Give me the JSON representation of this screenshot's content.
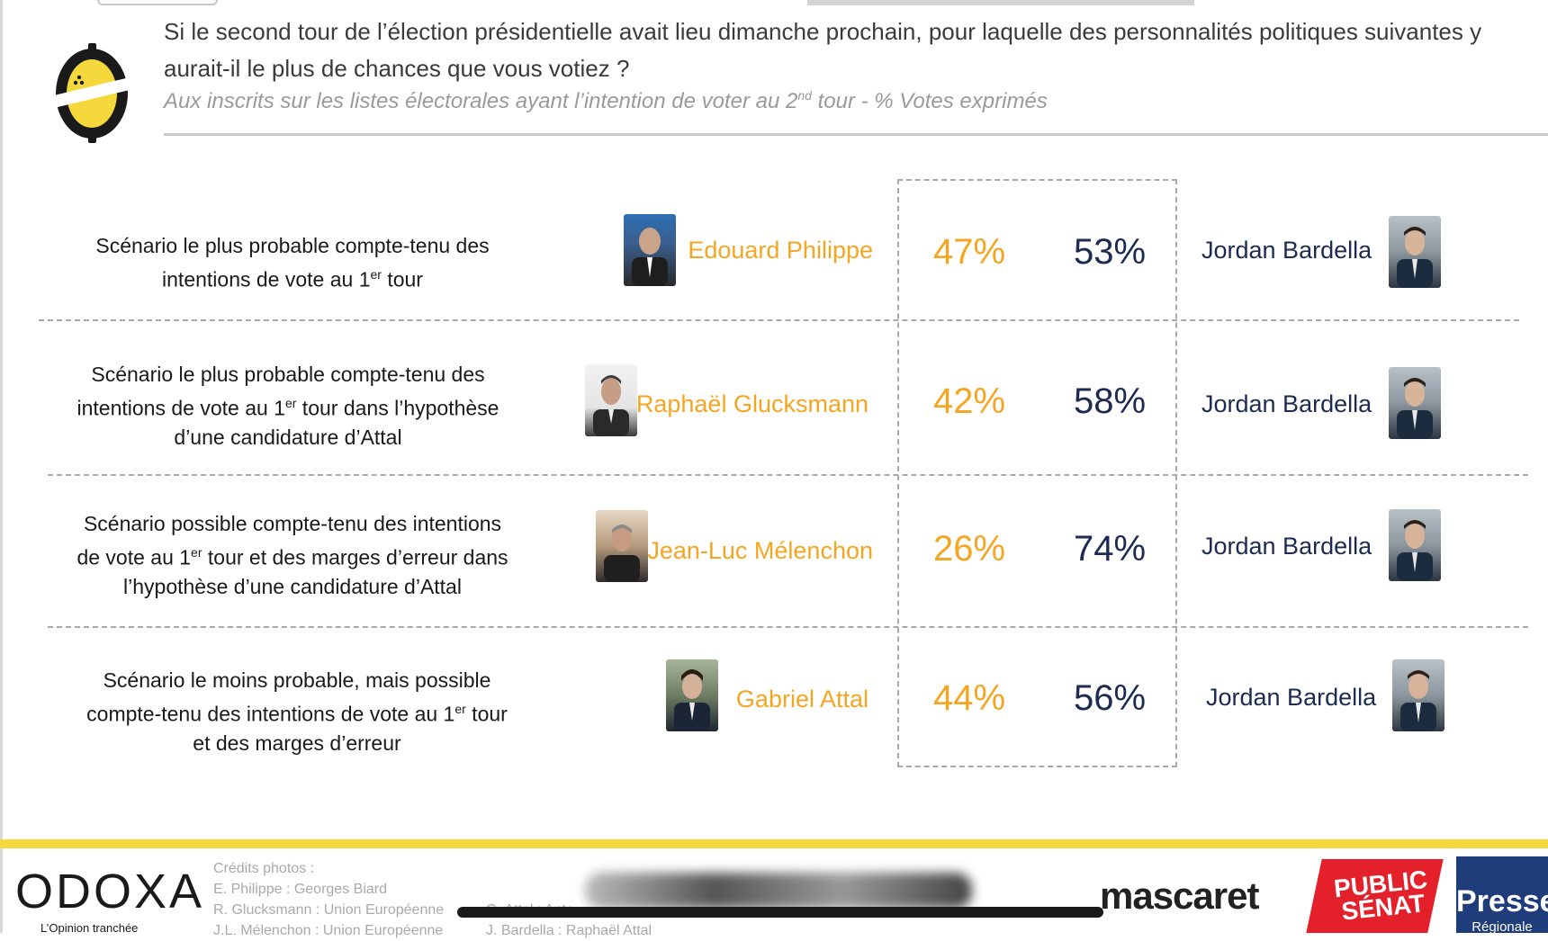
{
  "header": {
    "question": "Si le second tour de l’élection présidentielle avait lieu dimanche prochain, pour laquelle des personnalités politiques suivantes y aurait-il le plus de chances que vous votiez ?",
    "subtitle_pre": "Aux inscrits sur les listes électorales ayant l’intention de voter au 2",
    "subtitle_sup": "nd",
    "subtitle_post": " tour  - % Votes exprimés"
  },
  "chart_data": {
    "type": "table",
    "title": "Si le second tour de l’élection présidentielle avait lieu dimanche prochain, pour laquelle des personnalités politiques suivantes y aurait-il le plus de chances que vous votiez ?",
    "unit": "% Votes exprimés",
    "rows": [
      {
        "scenario_l1": "Scénario le plus probable compte-tenu des",
        "scenario_l2_pre": "intentions de vote au 1",
        "scenario_l2_sup": "er",
        "scenario_l2_post": " tour",
        "scenario_l3": "",
        "left_candidate": "Edouard Philippe",
        "left_pct": 47,
        "right_candidate": "Jordan Bardella",
        "right_pct": 53
      },
      {
        "scenario_l1": "Scénario le plus probable compte-tenu des",
        "scenario_l2_pre": "intentions de vote au 1",
        "scenario_l2_sup": "er",
        "scenario_l2_post": " tour dans l’hypothèse",
        "scenario_l3": "d’une candidature d’Attal",
        "left_candidate": "Raphaël Glucksmann",
        "left_pct": 42,
        "right_candidate": "Jordan Bardella",
        "right_pct": 58
      },
      {
        "scenario_l1": "Scénario possible compte-tenu des intentions",
        "scenario_l2_pre": "de vote au 1",
        "scenario_l2_sup": "er",
        "scenario_l2_post": " tour et des marges d’erreur dans",
        "scenario_l3": "l’hypothèse d’une candidature d’Attal",
        "left_candidate": "Jean-Luc Mélenchon",
        "left_pct": 26,
        "right_candidate": "Jordan Bardella",
        "right_pct": 74
      },
      {
        "scenario_l1": "Scénario le moins probable, mais possible",
        "scenario_l2_pre": "compte-tenu des intentions de vote au 1",
        "scenario_l2_sup": "er",
        "scenario_l2_post": " tour",
        "scenario_l3": "et des marges d’erreur",
        "left_candidate": "Gabriel Attal",
        "left_pct": 44,
        "right_candidate": "Jordan Bardella",
        "right_pct": 56
      }
    ]
  },
  "footer": {
    "credits": [
      "Crédits photos :",
      "E. Philippe : Georges Biard",
      "R. Glucksmann : Union Européenne",
      "J.L. Mélenchon : Union Européenne",
      "G. Attal : Anto…",
      "J. Bardella : Raphaël Attal"
    ],
    "odoxa": "ODOXA",
    "odoxa_tagline": "L’Opinion tranchée",
    "mascaret": "mascaret",
    "public_senat": "PUBLIC SÉNAT",
    "presse_regionale_l1": "Presse",
    "presse_regionale_l2": "Régionale"
  },
  "colors": {
    "left": "#F4A622",
    "right": "#1d2b52",
    "band": "#F5D83C"
  }
}
